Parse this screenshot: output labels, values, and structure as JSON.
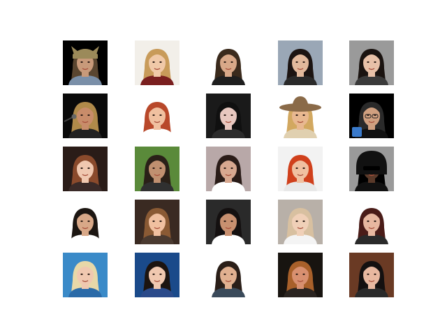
{
  "figure": {
    "rows": 5,
    "cols": 5,
    "background": "#ffffff",
    "thumbnails": [
      {
        "bg": "#000000",
        "skin": "#c89a7a",
        "hair": "#5a4630",
        "shirt": "#7a8fa8",
        "hat": "#9b8a5a",
        "accessory": "ears-hat"
      },
      {
        "bg": "#f2efe9",
        "skin": "#f0c9a8",
        "hair": "#c89b5a",
        "shirt": "#7a1f1f",
        "accessory": "none"
      },
      {
        "bg": "#ffffff",
        "skin": "#d8a888",
        "hair": "#3a2a1c",
        "shirt": "#1e1e1e",
        "accessory": "none"
      },
      {
        "bg": "#9aa7b6",
        "skin": "#e2b99c",
        "hair": "#1c1412",
        "shirt": "#2a2a2a",
        "accessory": "none"
      },
      {
        "bg": "#9a9a9a",
        "skin": "#e8c1a8",
        "hair": "#1a1310",
        "shirt": "#3a3a3a",
        "accessory": "none"
      },
      {
        "bg": "#0a0a0a",
        "skin": "#c88c6a",
        "hair": "#b08a4a",
        "shirt": "#222222",
        "accessory": "microphone"
      },
      {
        "bg": "#ffffff",
        "skin": "#f0c0a0",
        "hair": "#b8482a",
        "shirt": "#ffffff",
        "accessory": "none"
      },
      {
        "bg": "#1a1a1a",
        "skin": "#e8c8c0",
        "hair": "#101010",
        "shirt": "#2c2c2c",
        "accessory": "none"
      },
      {
        "bg": "#ffffff",
        "skin": "#e8b890",
        "hair": "#d2a860",
        "shirt": "#e0d0b0",
        "hat": "#8a6a48",
        "accessory": "cowboy-hat"
      },
      {
        "bg": "#000000",
        "skin": "#d0a080",
        "hair": "#2a2a2a",
        "shirt": "#111111",
        "accessory": "glasses-phone"
      },
      {
        "bg": "#2a1c18",
        "skin": "#f0c8b0",
        "hair": "#8a4a2c",
        "shirt": "#3a2a28",
        "accessory": "none"
      },
      {
        "bg": "#5a8a3a",
        "skin": "#c09070",
        "hair": "#2a2018",
        "shirt": "#303030",
        "accessory": "none"
      },
      {
        "bg": "#b8a8a8",
        "skin": "#d8a890",
        "hair": "#2a1c18",
        "shirt": "#ffffff",
        "accessory": "none"
      },
      {
        "bg": "#f2f2f2",
        "skin": "#f0c0a0",
        "hair": "#d0401c",
        "shirt": "#e8e8e8",
        "accessory": "none"
      },
      {
        "bg": "#9a9a9a",
        "skin": "#5a3a2a",
        "hair": "#000000",
        "shirt": "#111111",
        "hat": "#111111",
        "accessory": "hood-glasses"
      },
      {
        "bg": "#ffffff",
        "skin": "#d8a888",
        "hair": "#1c1612",
        "shirt": "#ffffff",
        "accessory": "none"
      },
      {
        "bg": "#3a2a22",
        "skin": "#f0c0a0",
        "hair": "#8a5a34",
        "shirt": "#4a3a30",
        "accessory": "none"
      },
      {
        "bg": "#2a2a2a",
        "skin": "#c89070",
        "hair": "#141010",
        "shirt": "#ffffff",
        "accessory": "none"
      },
      {
        "bg": "#b8b0a8",
        "skin": "#f0d0b8",
        "hair": "#d8c0a0",
        "shirt": "#f4f4f4",
        "accessory": "none"
      },
      {
        "bg": "#ffffff",
        "skin": "#e8b8a0",
        "hair": "#4a1c18",
        "shirt": "#2a2a2a",
        "accessory": "none"
      },
      {
        "bg": "#3a8ac8",
        "skin": "#f0c8b0",
        "hair": "#e8d8a8",
        "shirt": "#2a6aa8",
        "accessory": "none"
      },
      {
        "bg": "#1a4a8a",
        "skin": "#f0c8b0",
        "hair": "#1c1410",
        "shirt": "#2a4a8a",
        "accessory": "none"
      },
      {
        "bg": "#ffffff",
        "skin": "#e0b090",
        "hair": "#2a1e18",
        "shirt": "#3a4a5a",
        "accessory": "none"
      },
      {
        "bg": "#181410",
        "skin": "#d89070",
        "hair": "#a8602a",
        "shirt": "#2a2420",
        "accessory": "none"
      },
      {
        "bg": "#6a3a24",
        "skin": "#e8b8a0",
        "hair": "#141010",
        "shirt": "#2a2a2a",
        "accessory": "none"
      }
    ]
  }
}
